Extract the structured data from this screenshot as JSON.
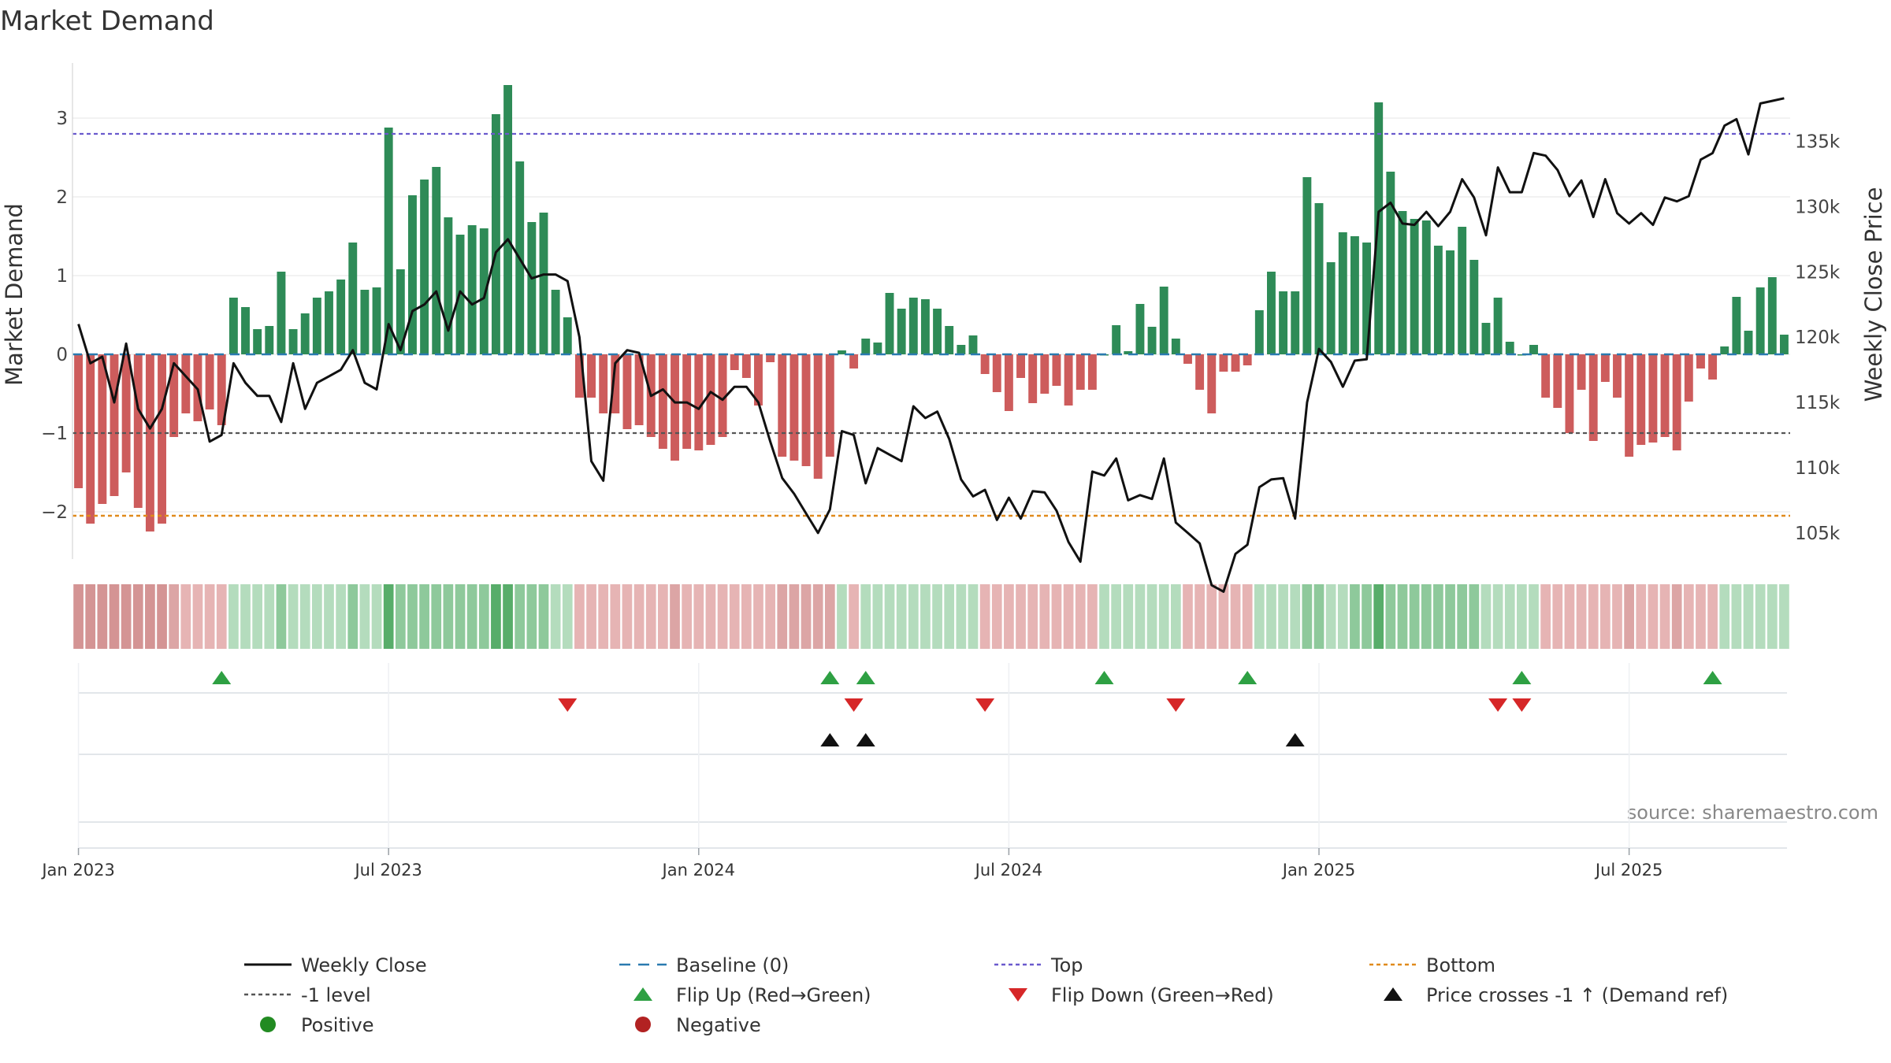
{
  "chart_data": {
    "type": "bar",
    "title": "Market Demand",
    "ylabel_left": "Market Demand",
    "ylabel_right": "Weekly Close Price",
    "source": "source: sharemaestro.com",
    "ylim_left": [
      -2.6,
      3.7
    ],
    "ylim_right": [
      103000,
      141000
    ],
    "yticks_left": [
      {
        "v": 3,
        "label": "3"
      },
      {
        "v": 2,
        "label": "2"
      },
      {
        "v": 1,
        "label": "1"
      },
      {
        "v": 0,
        "label": "0"
      },
      {
        "v": -1,
        "label": "−1"
      },
      {
        "v": -2,
        "label": "−2"
      }
    ],
    "yticks_right": [
      {
        "v": 135000,
        "label": "135k"
      },
      {
        "v": 130000,
        "label": "130k"
      },
      {
        "v": 125000,
        "label": "125k"
      },
      {
        "v": 120000,
        "label": "120k"
      },
      {
        "v": 115000,
        "label": "115k"
      },
      {
        "v": 110000,
        "label": "110k"
      },
      {
        "v": 105000,
        "label": "105k"
      }
    ],
    "xticks": [
      {
        "week": 1,
        "label": "Jan 2023"
      },
      {
        "week": 27,
        "label": "Jul 2023"
      },
      {
        "week": 53,
        "label": "Jan 2024"
      },
      {
        "week": 79,
        "label": "Jul 2024"
      },
      {
        "week": 105,
        "label": "Jan 2025"
      },
      {
        "week": 131,
        "label": "Jul 2025"
      }
    ],
    "reference_lines": {
      "top": 2.8,
      "bottom": -2.05,
      "minus_one": -1,
      "baseline": 0
    },
    "demand": [
      -1.7,
      -2.15,
      -1.9,
      -1.8,
      -1.5,
      -1.95,
      -2.25,
      -2.15,
      -1.05,
      -0.75,
      -0.85,
      -0.7,
      -0.9,
      0.72,
      0.6,
      0.32,
      0.36,
      1.05,
      0.32,
      0.52,
      0.72,
      0.8,
      0.95,
      1.42,
      0.82,
      0.85,
      2.88,
      1.08,
      2.02,
      2.22,
      2.38,
      1.74,
      1.52,
      1.64,
      1.6,
      3.05,
      3.42,
      2.45,
      1.68,
      1.8,
      0.82,
      0.47,
      -0.55,
      -0.55,
      -0.75,
      -0.75,
      -0.95,
      -0.9,
      -1.05,
      -1.2,
      -1.35,
      -1.2,
      -1.22,
      -1.15,
      -1.05,
      -0.2,
      -0.3,
      -0.65,
      -0.1,
      -1.3,
      -1.35,
      -1.42,
      -1.58,
      -1.3,
      0.05,
      -0.18,
      0.2,
      0.15,
      0.78,
      0.58,
      0.72,
      0.7,
      0.58,
      0.36,
      0.12,
      0.24,
      -0.25,
      -0.48,
      -0.72,
      -0.3,
      -0.62,
      -0.5,
      -0.4,
      -0.65,
      -0.45,
      -0.45,
      0.0,
      0.37,
      0.04,
      0.64,
      0.35,
      0.86,
      0.2,
      -0.12,
      -0.45,
      -0.75,
      -0.22,
      -0.22,
      -0.14,
      0.56,
      1.05,
      0.8,
      0.8,
      2.25,
      1.92,
      1.17,
      1.55,
      1.5,
      1.42,
      3.2,
      2.32,
      1.82,
      1.72,
      1.7,
      1.38,
      1.32,
      1.62,
      1.2,
      0.4,
      0.72,
      0.16,
      0.0,
      0.12,
      -0.55,
      -0.68,
      -1.0,
      -0.45,
      -1.1,
      -0.35,
      -0.55,
      -1.3,
      -1.15,
      -1.12,
      -1.05,
      -1.22,
      -0.6,
      -0.18,
      -0.32,
      0.1,
      0.73,
      0.3,
      0.85,
      0.98,
      0.25
    ],
    "weekly_close": [
      121000,
      118000,
      118500,
      115000,
      119500,
      114500,
      113000,
      114500,
      118000,
      117000,
      116000,
      112000,
      112500,
      118000,
      116500,
      115500,
      115500,
      113500,
      118000,
      114500,
      116500,
      117000,
      117500,
      119000,
      116500,
      116000,
      121000,
      119000,
      122000,
      122500,
      123500,
      120500,
      123500,
      122500,
      123000,
      126500,
      127500,
      126000,
      124500,
      124800,
      124800,
      124300,
      120000,
      110500,
      109000,
      118000,
      119000,
      118800,
      115500,
      116000,
      115000,
      115000,
      114500,
      115800,
      115200,
      116200,
      116200,
      115000,
      112000,
      109200,
      108000,
      106500,
      105000,
      106800,
      112800,
      112500,
      108800,
      111500,
      111000,
      110500,
      114700,
      113800,
      114300,
      112200,
      109100,
      107800,
      108300,
      106000,
      107700,
      106100,
      108200,
      108100,
      106700,
      104300,
      102800,
      109700,
      109400,
      110700,
      107500,
      107900,
      107600,
      110700,
      105800,
      105000,
      104200,
      101000,
      100500,
      103400,
      104100,
      108500,
      109100,
      109200,
      106100,
      115000,
      119100,
      118100,
      116200,
      118200,
      118300,
      129600,
      130300,
      128700,
      128600,
      129600,
      128500,
      129600,
      132100,
      130700,
      127800,
      133000,
      131100,
      131100,
      134100,
      133900,
      132800,
      130800,
      132000,
      129200,
      132100,
      129500,
      128700,
      129500,
      128600,
      130700,
      130400,
      130800,
      133600,
      134100,
      136200,
      136700,
      134000,
      137900,
      138100,
      138300
    ],
    "strip_intensity": [
      -3,
      -3,
      -3,
      -3,
      -3,
      -3,
      -3,
      -3,
      -2,
      -1,
      -1,
      -1,
      -1,
      1,
      1,
      1,
      1,
      2,
      1,
      1,
      1,
      1,
      1,
      2,
      1,
      1,
      3,
      2,
      2,
      2,
      2,
      2,
      2,
      2,
      2,
      3,
      3,
      2,
      2,
      2,
      1,
      1,
      -1,
      -1,
      -1,
      -1,
      -1,
      -1,
      -1,
      -1,
      -2,
      -1,
      -1,
      -1,
      -1,
      -1,
      -1,
      -1,
      -1,
      -2,
      -2,
      -2,
      -2,
      -2,
      1,
      -1,
      1,
      1,
      1,
      1,
      1,
      1,
      1,
      1,
      1,
      1,
      -1,
      -1,
      -1,
      -1,
      -1,
      -1,
      -1,
      -1,
      -1,
      -1,
      1,
      1,
      1,
      1,
      1,
      1,
      1,
      -1,
      -1,
      -1,
      -1,
      -1,
      -1,
      1,
      1,
      1,
      1,
      2,
      2,
      1,
      1,
      2,
      2,
      3,
      2,
      2,
      2,
      2,
      2,
      2,
      2,
      2,
      1,
      1,
      1,
      1,
      1,
      -1,
      -1,
      -1,
      -1,
      -1,
      -1,
      -1,
      -2,
      -1,
      -1,
      -1,
      -2,
      -1,
      -1,
      -1,
      1,
      1,
      1,
      1,
      1,
      1
    ],
    "flip_up_weeks": [
      13,
      64,
      67,
      87,
      99,
      122,
      138
    ],
    "flip_down_weeks": [
      42,
      66,
      77,
      93,
      120,
      122
    ],
    "price_cross_weeks": [
      64,
      67,
      103
    ],
    "legend": [
      {
        "label": "Weekly Close",
        "type": "solid-line",
        "color": "#111111"
      },
      {
        "label": "Baseline (0)",
        "type": "dashed-line",
        "color": "#2a7ab0"
      },
      {
        "label": "Top",
        "type": "dotted-line",
        "color": "#6a5acd"
      },
      {
        "label": "Bottom",
        "type": "dotted-line",
        "color": "#e08a1c"
      },
      {
        "label": "-1 level",
        "type": "dotted-line",
        "color": "#555555"
      },
      {
        "label": "Flip Up (Red→Green)",
        "type": "triangle-up",
        "color": "#2ea043"
      },
      {
        "label": "Flip Down (Green→Red)",
        "type": "triangle-down",
        "color": "#d62728"
      },
      {
        "label": "Price crosses -1 ↑ (Demand ref)",
        "type": "triangle-up",
        "color": "#111111"
      },
      {
        "label": "Positive",
        "type": "dot",
        "color": "#228b22"
      },
      {
        "label": "Negative",
        "type": "dot",
        "color": "#b22222"
      }
    ],
    "colors": {
      "positive_bar": "#2e8b57",
      "negative_bar": "#cd5c5c",
      "price_line": "#111111",
      "baseline": "#2a7ab0",
      "top": "#6a5acd",
      "bottom": "#e08a1c",
      "minus_one": "#555555"
    }
  }
}
